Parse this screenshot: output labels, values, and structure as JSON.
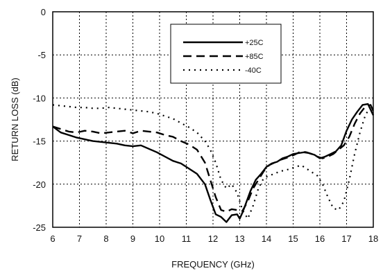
{
  "chart_data": {
    "type": "line",
    "xlabel": "FREQUENCY (GHz)",
    "ylabel": "RETURN LOSS (dB)",
    "xlim": [
      6,
      18
    ],
    "ylim": [
      -25,
      0
    ],
    "x_ticks": [
      "6",
      "7",
      "8",
      "9",
      "10",
      "11",
      "12",
      "13",
      "14",
      "15",
      "16",
      "17",
      "18"
    ],
    "y_ticks": [
      "0",
      "-5",
      "-10",
      "-15",
      "-20",
      "-25"
    ],
    "grid": true,
    "legend_position": "top-right",
    "series": [
      {
        "name": "+25C",
        "style": "solid",
        "x": [
          6.0,
          6.3,
          6.6,
          6.9,
          7.2,
          7.5,
          7.8,
          8.1,
          8.4,
          8.7,
          9.0,
          9.3,
          9.6,
          9.9,
          10.2,
          10.5,
          10.8,
          11.1,
          11.4,
          11.7,
          11.9,
          12.1,
          12.3,
          12.5,
          12.7,
          12.9,
          13.0,
          13.1,
          13.2,
          13.4,
          13.6,
          13.8,
          14.0,
          14.2,
          14.4,
          14.6,
          14.8,
          15.0,
          15.2,
          15.4,
          15.6,
          15.8,
          16.0,
          16.2,
          16.4,
          16.6,
          16.8,
          17.0,
          17.2,
          17.4,
          17.6,
          17.8,
          18.0
        ],
        "y": [
          -13.3,
          -14.0,
          -14.3,
          -14.6,
          -14.8,
          -15.0,
          -15.1,
          -15.2,
          -15.3,
          -15.5,
          -15.6,
          -15.5,
          -15.9,
          -16.3,
          -16.8,
          -17.3,
          -17.6,
          -18.2,
          -18.8,
          -20.0,
          -21.8,
          -23.5,
          -23.8,
          -24.4,
          -23.6,
          -23.5,
          -24.0,
          -23.3,
          -22.5,
          -20.8,
          -19.5,
          -18.8,
          -18.0,
          -17.6,
          -17.4,
          -17.0,
          -16.8,
          -16.5,
          -16.4,
          -16.3,
          -16.4,
          -16.6,
          -17.0,
          -16.8,
          -16.5,
          -16.2,
          -15.5,
          -13.8,
          -12.5,
          -11.6,
          -10.8,
          -10.7,
          -12.0
        ]
      },
      {
        "name": "+85C",
        "style": "dashed",
        "x": [
          6.0,
          6.3,
          6.6,
          6.9,
          7.2,
          7.5,
          7.8,
          8.1,
          8.4,
          8.7,
          9.0,
          9.3,
          9.6,
          9.9,
          10.2,
          10.5,
          10.8,
          11.1,
          11.4,
          11.7,
          11.9,
          12.1,
          12.3,
          12.5,
          12.7,
          12.9,
          13.1,
          13.3,
          13.5,
          13.7,
          13.9,
          14.1,
          14.3,
          14.5,
          14.7,
          14.9,
          15.1,
          15.3,
          15.5,
          15.7,
          15.9,
          16.1,
          16.3,
          16.5,
          16.7,
          16.9,
          17.1,
          17.3,
          17.5,
          17.7,
          17.9,
          18.0
        ],
        "y": [
          -13.3,
          -13.6,
          -13.9,
          -14.0,
          -13.8,
          -13.9,
          -14.1,
          -14.0,
          -13.9,
          -13.8,
          -14.1,
          -13.8,
          -13.9,
          -14.0,
          -14.3,
          -14.5,
          -15.0,
          -15.4,
          -16.0,
          -17.5,
          -19.5,
          -21.5,
          -23.0,
          -23.2,
          -22.9,
          -23.0,
          -23.1,
          -22.0,
          -20.5,
          -19.5,
          -18.5,
          -17.8,
          -17.5,
          -17.2,
          -17.0,
          -16.8,
          -16.5,
          -16.2,
          -16.3,
          -16.5,
          -16.8,
          -17.0,
          -16.8,
          -16.5,
          -16.0,
          -15.5,
          -14.5,
          -13.0,
          -11.8,
          -11.0,
          -10.8,
          -11.5
        ]
      },
      {
        "name": "-40C",
        "style": "dotted",
        "x": [
          6.0,
          6.3,
          6.6,
          6.9,
          7.2,
          7.5,
          7.8,
          8.1,
          8.4,
          8.7,
          9.0,
          9.3,
          9.6,
          9.9,
          10.2,
          10.5,
          10.8,
          11.1,
          11.4,
          11.7,
          11.9,
          12.1,
          12.3,
          12.5,
          12.7,
          12.9,
          13.1,
          13.3,
          13.5,
          13.7,
          13.9,
          14.1,
          14.3,
          14.5,
          14.7,
          14.9,
          15.1,
          15.3,
          15.5,
          15.7,
          15.9,
          16.1,
          16.3,
          16.5,
          16.7,
          16.9,
          17.1,
          17.3,
          17.5,
          17.7,
          17.9,
          18.0
        ],
        "y": [
          -10.8,
          -10.9,
          -11.0,
          -11.1,
          -11.1,
          -11.2,
          -11.2,
          -11.1,
          -11.2,
          -11.3,
          -11.4,
          -11.5,
          -11.6,
          -11.8,
          -12.1,
          -12.4,
          -12.9,
          -13.4,
          -14.0,
          -15.0,
          -16.0,
          -17.5,
          -19.5,
          -20.5,
          -20.0,
          -21.0,
          -23.0,
          -24.0,
          -22.5,
          -20.5,
          -19.3,
          -19.0,
          -18.8,
          -18.5,
          -18.4,
          -18.2,
          -18.0,
          -17.8,
          -18.2,
          -18.6,
          -19.0,
          -20.0,
          -21.5,
          -22.8,
          -23.0,
          -22.0,
          -19.5,
          -16.5,
          -14.0,
          -12.0,
          -11.0,
          -11.5
        ]
      }
    ]
  }
}
